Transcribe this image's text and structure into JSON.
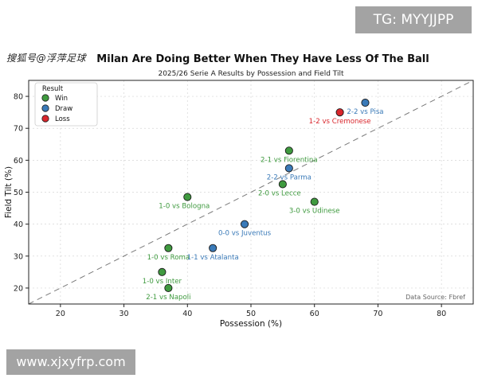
{
  "overlays": {
    "tg_banner": "TG: MYYJJPP",
    "url_banner": "www.xjxyfrp.com",
    "watermark_left": "搜狐号@浮萍足球"
  },
  "chart_data": {
    "type": "scatter",
    "title": "Milan Are Doing Better When They Have Less Of The Ball",
    "subtitle": "2025/26 Serie A Results by Possession and Field Tilt",
    "xlabel": "Possession (%)",
    "ylabel": "Field Tilt (%)",
    "xlim": [
      15,
      85
    ],
    "ylim": [
      15,
      85
    ],
    "xticks": [
      20,
      30,
      40,
      50,
      60,
      70,
      80
    ],
    "yticks": [
      20,
      30,
      40,
      50,
      60,
      70,
      80
    ],
    "grid": true,
    "diagonal_reference": true,
    "source_note": "Data Source: Fbref",
    "legend": {
      "title": "Result",
      "position": "top-left",
      "entries": [
        {
          "label": "Win",
          "color": "#3f9a3f"
        },
        {
          "label": "Draw",
          "color": "#3a7ab8"
        },
        {
          "label": "Loss",
          "color": "#d9262c"
        }
      ]
    },
    "points": [
      {
        "label": "2-2 vs Pisa",
        "x": 68,
        "y": 78,
        "result": "Draw",
        "anchor": "below"
      },
      {
        "label": "1-2 vs Cremonese",
        "x": 64,
        "y": 75,
        "result": "Loss",
        "anchor": "below"
      },
      {
        "label": "2-1 vs Fiorentina",
        "x": 56,
        "y": 63,
        "result": "Win",
        "anchor": "below"
      },
      {
        "label": "2-2 vs Parma",
        "x": 56,
        "y": 57.5,
        "result": "Draw",
        "anchor": "below"
      },
      {
        "label": "2-0 vs Lecce",
        "x": 55,
        "y": 52.5,
        "result": "Win",
        "anchor": "below-left"
      },
      {
        "label": "3-0 vs Udinese",
        "x": 60,
        "y": 47,
        "result": "Win",
        "anchor": "below"
      },
      {
        "label": "1-0 vs Bologna",
        "x": 40,
        "y": 48.5,
        "result": "Win",
        "anchor": "below-left"
      },
      {
        "label": "0-0 vs Juventus",
        "x": 49,
        "y": 40,
        "result": "Draw",
        "anchor": "below"
      },
      {
        "label": "1-0 vs Roma",
        "x": 37,
        "y": 32.5,
        "result": "Win",
        "anchor": "below"
      },
      {
        "label": "1-1 vs Atalanta",
        "x": 44,
        "y": 32.5,
        "result": "Draw",
        "anchor": "below"
      },
      {
        "label": "1-0 vs Inter",
        "x": 36,
        "y": 25,
        "result": "Win",
        "anchor": "below"
      },
      {
        "label": "2-1 vs Napoli",
        "x": 37,
        "y": 20,
        "result": "Win",
        "anchor": "below"
      }
    ]
  }
}
